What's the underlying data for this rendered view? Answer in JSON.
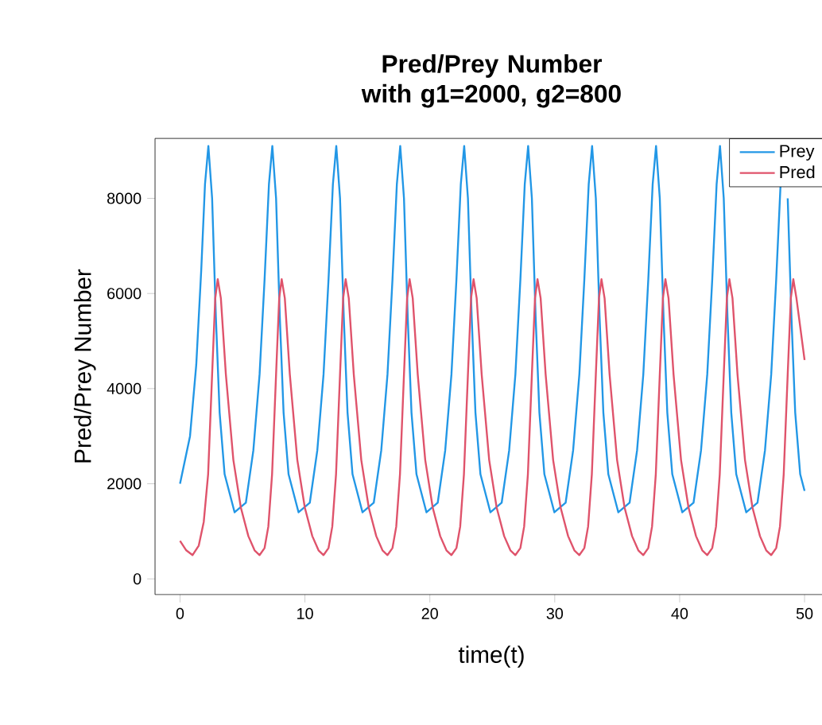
{
  "chart_data": {
    "type": "line",
    "title": "Pred/Prey Number with g1=2000, g2=800",
    "xlabel": "time(t)",
    "ylabel": "Pred/Prey Number",
    "xlim": [
      -2,
      51.9
    ],
    "ylim": [
      -330,
      9260
    ],
    "xticks": [
      0,
      10,
      20,
      30,
      40,
      50
    ],
    "yticks": [
      0,
      2000,
      4000,
      6000,
      8000
    ],
    "legend": "top right",
    "grid": false,
    "marker": "none",
    "line_style": "solid",
    "series": [
      {
        "name": "Prey",
        "color": "#2297e6",
        "x": [
          0,
          0.8,
          1.3,
          1.7,
          2.0,
          2.27,
          2.57,
          2.87,
          3.17,
          3.57,
          4.37,
          5.27,
          5.87,
          6.37,
          6.77,
          7.12,
          7.39,
          7.69,
          7.99,
          8.29,
          8.69,
          9.49,
          10.39,
          10.99,
          11.49,
          11.89,
          12.24,
          12.51,
          12.81,
          13.11,
          13.41,
          13.81,
          14.61,
          15.51,
          16.11,
          16.61,
          17.01,
          17.36,
          17.63,
          17.93,
          18.23,
          18.53,
          18.93,
          19.73,
          20.63,
          21.23,
          21.73,
          22.13,
          22.48,
          22.75,
          23.05,
          23.35,
          23.65,
          24.05,
          24.85,
          25.75,
          26.35,
          26.85,
          27.25,
          27.6,
          27.87,
          28.17,
          28.47,
          28.77,
          29.17,
          29.97,
          30.87,
          31.47,
          31.97,
          32.37,
          32.72,
          32.99,
          33.29,
          33.59,
          33.89,
          34.29,
          35.09,
          35.99,
          36.59,
          37.09,
          37.49,
          37.84,
          38.11,
          38.41,
          38.71,
          39.01,
          39.41,
          40.21,
          41.11,
          41.71,
          42.21,
          42.61,
          42.96,
          43.23,
          43.53,
          43.83,
          44.13,
          44.53,
          45.33,
          46.23,
          46.83,
          47.33,
          47.73,
          48.08,
          48.35,
          48.65,
          48.95,
          49.25,
          49.65,
          50
        ],
        "values": [
          2000,
          3000,
          4500,
          6500,
          8300,
          9100,
          8000,
          5500,
          3500,
          2200,
          1400,
          1600,
          2700,
          4300,
          6300,
          8300,
          9100,
          8000,
          5500,
          3500,
          2200,
          1400,
          1600,
          2700,
          4300,
          6300,
          8300,
          9100,
          8000,
          5500,
          3500,
          2200,
          1400,
          1600,
          2700,
          4300,
          6300,
          8300,
          9100,
          8000,
          5500,
          3500,
          2200,
          1400,
          1600,
          2700,
          4300,
          6300,
          8300,
          9100,
          8000,
          5500,
          3500,
          2200,
          1400,
          1600,
          2700,
          4300,
          6300,
          8300,
          9100,
          8000,
          5500,
          3500,
          2200,
          1400,
          1600,
          2700,
          4300,
          6300,
          8300,
          9100,
          8000,
          5500,
          3500,
          2200,
          1400,
          1600,
          2700,
          4300,
          6300,
          8300,
          9100,
          8000,
          5500,
          3500,
          2200,
          1400,
          1600,
          2700,
          4300,
          6300,
          8300,
          9100,
          8000,
          5500,
          3500,
          2200,
          1400,
          1600,
          2700,
          4300,
          6300,
          8300,
          null,
          8000,
          5500,
          3500,
          2200,
          1850
        ]
      },
      {
        "name": "Pred",
        "color": "#df536b",
        "x": [
          0,
          0.5,
          1.0,
          1.5,
          1.9,
          2.25,
          2.57,
          2.82,
          3.02,
          3.27,
          3.67,
          4.27,
          4.87,
          5.47,
          5.97,
          6.37,
          6.77,
          7.07,
          7.37,
          7.69,
          7.94,
          8.14,
          8.39,
          8.79,
          9.39,
          9.99,
          10.59,
          11.09,
          11.49,
          11.89,
          12.19,
          12.49,
          12.81,
          13.06,
          13.26,
          13.51,
          13.91,
          14.51,
          15.11,
          15.71,
          16.21,
          16.61,
          17.01,
          17.31,
          17.61,
          17.93,
          18.18,
          18.38,
          18.63,
          19.03,
          19.63,
          20.23,
          20.83,
          21.33,
          21.73,
          22.13,
          22.43,
          22.73,
          23.05,
          23.3,
          23.5,
          23.75,
          24.15,
          24.75,
          25.35,
          25.95,
          26.45,
          26.85,
          27.25,
          27.55,
          27.85,
          28.17,
          28.42,
          28.62,
          28.87,
          29.27,
          29.87,
          30.47,
          31.07,
          31.57,
          31.97,
          32.37,
          32.67,
          32.97,
          33.29,
          33.54,
          33.74,
          33.99,
          34.39,
          34.99,
          35.59,
          36.19,
          36.69,
          37.09,
          37.49,
          37.79,
          38.09,
          38.41,
          38.66,
          38.86,
          39.11,
          39.51,
          40.11,
          40.71,
          41.31,
          41.81,
          42.21,
          42.61,
          42.91,
          43.21,
          43.53,
          43.78,
          43.98,
          44.23,
          44.63,
          45.23,
          45.83,
          46.43,
          46.93,
          47.33,
          47.73,
          48.03,
          48.33,
          48.65,
          48.9,
          49.1,
          49.35,
          50
        ],
        "values": [
          800,
          600,
          500,
          700,
          1200,
          2200,
          4300,
          5900,
          6300,
          5900,
          4300,
          2500,
          1500,
          900,
          600,
          500,
          650,
          1100,
          2200,
          4300,
          5900,
          6300,
          5900,
          4300,
          2500,
          1500,
          900,
          600,
          500,
          650,
          1100,
          2200,
          4300,
          5900,
          6300,
          5900,
          4300,
          2500,
          1500,
          900,
          600,
          500,
          650,
          1100,
          2200,
          4300,
          5900,
          6300,
          5900,
          4300,
          2500,
          1500,
          900,
          600,
          500,
          650,
          1100,
          2200,
          4300,
          5900,
          6300,
          5900,
          4300,
          2500,
          1500,
          900,
          600,
          500,
          650,
          1100,
          2200,
          4300,
          5900,
          6300,
          5900,
          4300,
          2500,
          1500,
          900,
          600,
          500,
          650,
          1100,
          2200,
          4300,
          5900,
          6300,
          5900,
          4300,
          2500,
          1500,
          900,
          600,
          500,
          650,
          1100,
          2200,
          4300,
          5900,
          6300,
          5900,
          4300,
          2500,
          1500,
          900,
          600,
          500,
          650,
          1100,
          2200,
          4300,
          5900,
          6300,
          5900,
          4300,
          2500,
          1500,
          900,
          600,
          500,
          650,
          1100,
          2200,
          4300,
          5900,
          6300,
          5900,
          4600
        ]
      }
    ]
  }
}
